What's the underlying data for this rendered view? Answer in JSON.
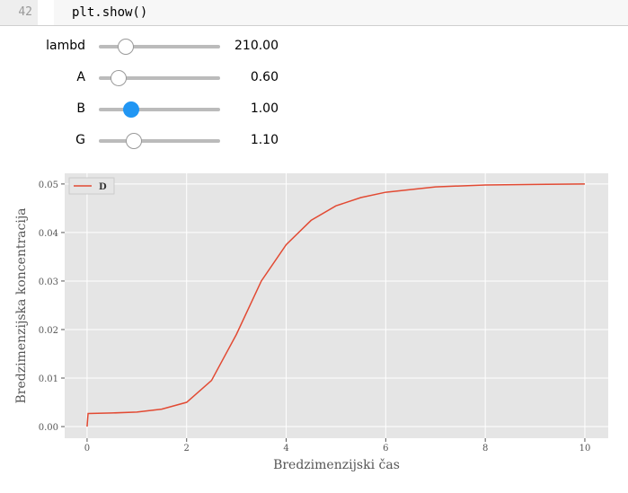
{
  "code": {
    "line_number": "42",
    "text": "plt.show()"
  },
  "sliders": [
    {
      "label": "lambd",
      "value": "210.00"
    },
    {
      "label": "A",
      "value": "0.60"
    },
    {
      "label": "B",
      "value": "1.00"
    },
    {
      "label": "G",
      "value": "1.10"
    }
  ],
  "chart_data": {
    "type": "line",
    "x_label": "Bredzimenzijski čas",
    "y_label": "Bredzimenzijska koncentracija",
    "x": [
      0,
      0.02,
      0.5,
      1,
      1.5,
      2,
      2.5,
      3,
      3.5,
      4,
      4.5,
      5,
      5.5,
      6,
      7,
      8,
      9,
      10
    ],
    "series": [
      {
        "name": "D",
        "color": "#E24A33",
        "values": [
          0,
          0.0027,
          0.0028,
          0.003,
          0.0036,
          0.005,
          0.0095,
          0.019,
          0.03,
          0.0375,
          0.0425,
          0.0455,
          0.0472,
          0.0483,
          0.0494,
          0.0498,
          0.0499,
          0.05
        ]
      }
    ],
    "xlim": [
      -0.45,
      10.47
    ],
    "ylim": [
      -0.0024,
      0.0522
    ],
    "xticks": [
      0,
      2,
      4,
      6,
      8,
      10
    ],
    "yticks": [
      {
        "value": 0,
        "label": "0.00"
      },
      0.01,
      0.02,
      0.03,
      0.04,
      0.05
    ],
    "grid": true,
    "legend": "upper left"
  }
}
